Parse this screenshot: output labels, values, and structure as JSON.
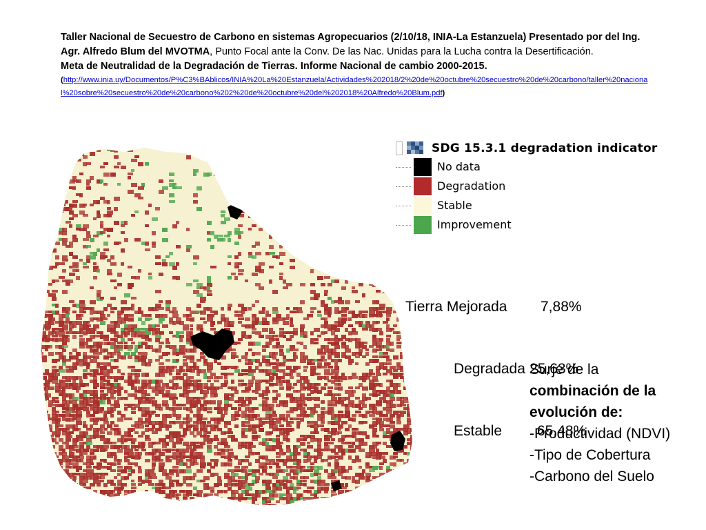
{
  "header": {
    "line1_bold": "Taller Nacional de Secuestro de Carbono en sistemas Agropecuarios (2/10/18, INIA-La Estanzuela) Presentado por del Ing. Agr. Alfredo Blum del MVOTMA",
    "line1_rest": ", Punto Focal ante la Conv. De las Nac. Unidas para la Lucha contra la Desertificación.",
    "line2_bold": "Meta de Neutralidad de la Degradación de Tierras. Informe Nacional de cambio 2000-2015.",
    "link_open": "(",
    "link_url": "http://www.inia.uy/Documentos/P%C3%BAblicos/INIA%20La%20Estanzuela/Actividades%202018/2%20de%20octubre%20secuestro%20de%20carbono/taller%20nacional%20sobre%20secuestro%20de%20carbono%202%20de%20octubre%20del%202018%20Alfredo%20Blum.pdf",
    "link_close": ")"
  },
  "legend": {
    "title": "SDG 15.3.1 degradation indicator",
    "items": [
      {
        "label": "No data",
        "color": "#000000"
      },
      {
        "label": "Degradation",
        "color": "#b32a2a"
      },
      {
        "label": "Stable",
        "color": "#fbf7d8"
      },
      {
        "label": "Improvement",
        "color": "#4ca64c"
      }
    ]
  },
  "stats": {
    "row1_label": "Tierra Mejorada",
    "row1_value": "7,88%",
    "row2_label": "Degradada",
    "row2_value": "25,63%",
    "row3_label": "Estable",
    "row3_value": "65,48%"
  },
  "note": {
    "line1": "Surje de la",
    "line2_bold": "combinación de la",
    "line3_bold": "evolución de:",
    "item1": "-Productividad (NDVI)",
    "item2": "-Tipo de Cobertura",
    "item3": "-Carbono del Suelo"
  },
  "map_colors": {
    "stable": "#f6f1d0",
    "degradation": "#a8302c",
    "improvement": "#52a852",
    "no_data": "#000000"
  }
}
